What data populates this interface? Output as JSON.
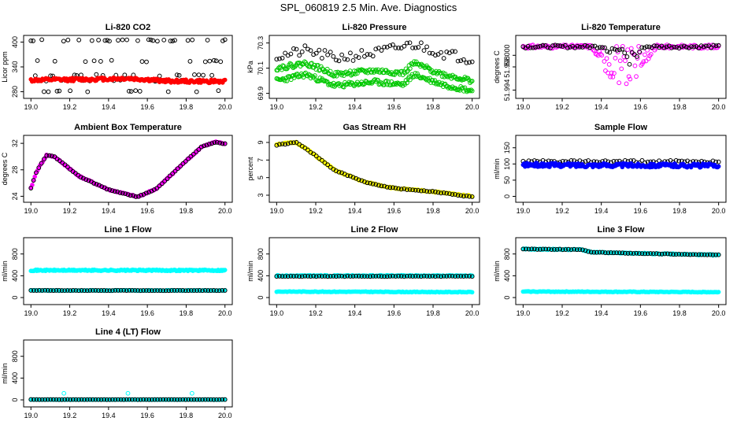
{
  "title": "SPL_060819  2.5 Min. Ave. Diagnostics",
  "colors": {
    "black": "#000000",
    "red": "#ff0000",
    "green": "#00c800",
    "magenta": "#ff00ff",
    "yellow": "#ffff00",
    "blue": "#0000ff",
    "cyan": "#00ffff"
  },
  "chart_data": [
    {
      "id": "co2",
      "type": "scatter",
      "title": "Li-820 CO2",
      "ylabel": "Licor ppm",
      "xlim": [
        19.0,
        20.0
      ],
      "ylim": [
        270,
        410
      ],
      "xticks": [
        "19.0",
        "19.2",
        "19.4",
        "19.6",
        "19.8",
        "20.0"
      ],
      "yticks": [
        {
          "v": 280,
          "l": "280"
        },
        {
          "v": 340,
          "l": "340"
        },
        {
          "v": 400,
          "l": "400"
        }
      ],
      "series": [
        {
          "name": "scatter-high",
          "color": "#000000",
          "style": "open",
          "mode": "pattern",
          "n": 90,
          "seed": 11,
          "base": 320,
          "levels": [
            404,
            354,
            306,
            281,
            320,
            404
          ]
        },
        {
          "name": "red-trace",
          "color": "#ff0000",
          "style": "filled",
          "mode": "band",
          "n": 170,
          "seed": 12,
          "knots": [
            [
              19.0,
              308
            ],
            [
              19.3,
              310
            ],
            [
              19.5,
              312
            ],
            [
              19.7,
              306
            ],
            [
              19.85,
              305
            ],
            [
              20.0,
              305
            ]
          ],
          "noise": 4
        }
      ]
    },
    {
      "id": "pressure",
      "type": "scatter",
      "title": "Li-820 Pressure",
      "ylabel": "kPa",
      "xlim": [
        19.0,
        20.0
      ],
      "ylim": [
        69.88,
        70.34
      ],
      "xticks": [
        "19.0",
        "19.2",
        "19.4",
        "19.6",
        "19.8",
        "20.0"
      ],
      "yticks": [
        {
          "v": 69.9,
          "l": "69.9"
        },
        {
          "v": 70.1,
          "l": "70.1"
        },
        {
          "v": 70.3,
          "l": "70.3"
        }
      ],
      "series": [
        {
          "name": "black-pressure",
          "color": "#000000",
          "style": "open",
          "mode": "band",
          "n": 70,
          "seed": 21,
          "knots": [
            [
              19.0,
              70.19
            ],
            [
              19.15,
              70.24
            ],
            [
              19.3,
              70.18
            ],
            [
              19.5,
              70.22
            ],
            [
              19.7,
              70.29
            ],
            [
              19.85,
              70.22
            ],
            [
              20.0,
              70.17
            ]
          ],
          "noise": 0.04
        },
        {
          "name": "green-upper",
          "color": "#00c800",
          "style": "open",
          "mode": "band",
          "n": 190,
          "seed": 22,
          "knots": [
            [
              19.0,
              70.1
            ],
            [
              19.15,
              70.14
            ],
            [
              19.3,
              70.05
            ],
            [
              19.5,
              70.08
            ],
            [
              19.65,
              70.06
            ],
            [
              19.7,
              70.14
            ],
            [
              19.85,
              70.05
            ],
            [
              20.0,
              70.0
            ]
          ],
          "noise": 0.02
        },
        {
          "name": "green-lower",
          "color": "#00c800",
          "style": "open",
          "mode": "band",
          "n": 190,
          "seed": 23,
          "knots": [
            [
              19.0,
              70.0
            ],
            [
              19.15,
              70.05
            ],
            [
              19.3,
              69.96
            ],
            [
              19.5,
              69.99
            ],
            [
              19.65,
              69.97
            ],
            [
              19.7,
              70.05
            ],
            [
              19.85,
              69.97
            ],
            [
              20.0,
              69.92
            ]
          ],
          "noise": 0.02
        }
      ]
    },
    {
      "id": "licor-temp",
      "type": "scatter",
      "title": "Li-820 Temperature",
      "ylabel": "degrees C",
      "xlim": [
        19.0,
        20.0
      ],
      "ylim": [
        51.993,
        52.003
      ],
      "xticks": [
        "19.0",
        "19.2",
        "19.4",
        "19.6",
        "19.8",
        "20.0"
      ],
      "yticks": [
        {
          "v": 51.994,
          "l": "51.994"
        },
        {
          "v": 51.998,
          "l": "51.998"
        },
        {
          "v": 52.0,
          "l": "52.000"
        }
      ],
      "series": [
        {
          "name": "magenta-temp",
          "color": "#ff00ff",
          "style": "open",
          "mode": "dip",
          "n": 160,
          "seed": 31,
          "base": 52.0015,
          "dipStart": 19.35,
          "dipEnd": 19.68,
          "dipDepth": 0.007,
          "noise": 0.0006
        },
        {
          "name": "black-temp",
          "color": "#000000",
          "style": "open",
          "mode": "dip",
          "n": 80,
          "seed": 32,
          "base": 52.0015,
          "dipStart": 19.4,
          "dipEnd": 19.62,
          "dipDepth": 0.004,
          "noise": 0.0005
        }
      ]
    },
    {
      "id": "box-temp",
      "type": "scatter",
      "title": "Ambient Box Temperature",
      "ylabel": "degrees C",
      "xlim": [
        19.0,
        20.0
      ],
      "ylim": [
        23.5,
        32.8
      ],
      "xticks": [
        "19.0",
        "19.2",
        "19.4",
        "19.6",
        "19.8",
        "20.0"
      ],
      "yticks": [
        {
          "v": 24,
          "l": "24"
        },
        {
          "v": 28,
          "l": "28"
        },
        {
          "v": 32,
          "l": "32"
        }
      ],
      "series": [
        {
          "name": "magenta-box",
          "color": "#ff00ff",
          "style": "filled",
          "mode": "band",
          "n": 150,
          "seed": 41,
          "knots": [
            [
              19.0,
              25.2
            ],
            [
              19.03,
              27.8
            ],
            [
              19.08,
              30.2
            ],
            [
              19.12,
              30.0
            ],
            [
              19.25,
              27.0
            ],
            [
              19.4,
              25.0
            ],
            [
              19.55,
              23.9
            ],
            [
              19.65,
              25.2
            ],
            [
              19.75,
              28.0
            ],
            [
              19.88,
              31.5
            ],
            [
              19.95,
              32.2
            ],
            [
              20.0,
              31.9
            ]
          ],
          "noise": 0.1
        },
        {
          "name": "black-box",
          "color": "#000000",
          "style": "open",
          "mode": "band",
          "n": 75,
          "seed": 42,
          "knots": [
            [
              19.0,
              25.2
            ],
            [
              19.03,
              27.8
            ],
            [
              19.08,
              30.2
            ],
            [
              19.12,
              30.0
            ],
            [
              19.25,
              27.0
            ],
            [
              19.4,
              25.0
            ],
            [
              19.55,
              23.9
            ],
            [
              19.65,
              25.2
            ],
            [
              19.75,
              28.0
            ],
            [
              19.88,
              31.5
            ],
            [
              19.95,
              32.2
            ],
            [
              20.0,
              31.9
            ]
          ],
          "noise": 0.05
        }
      ]
    },
    {
      "id": "rh",
      "type": "scatter",
      "title": "Gas Stream RH",
      "ylabel": "percent",
      "xlim": [
        19.0,
        20.0
      ],
      "ylim": [
        2.5,
        9.5
      ],
      "xticks": [
        "19.0",
        "19.2",
        "19.4",
        "19.6",
        "19.8",
        "20.0"
      ],
      "yticks": [
        {
          "v": 3,
          "l": "3"
        },
        {
          "v": 5,
          "l": "5"
        },
        {
          "v": 7,
          "l": "7"
        },
        {
          "v": 9,
          "l": "9"
        }
      ],
      "series": [
        {
          "name": "yellow-rh",
          "color": "#ffff00",
          "style": "filled",
          "mode": "band",
          "n": 160,
          "seed": 51,
          "knots": [
            [
              19.0,
              8.8
            ],
            [
              19.1,
              9.0
            ],
            [
              19.15,
              8.3
            ],
            [
              19.3,
              5.8
            ],
            [
              19.45,
              4.5
            ],
            [
              19.6,
              3.8
            ],
            [
              19.8,
              3.4
            ],
            [
              20.0,
              2.9
            ]
          ],
          "noise": 0.08
        },
        {
          "name": "black-rh",
          "color": "#000000",
          "style": "open",
          "mode": "band",
          "n": 70,
          "seed": 52,
          "knots": [
            [
              19.0,
              8.7
            ],
            [
              19.1,
              9.0
            ],
            [
              19.15,
              8.3
            ],
            [
              19.3,
              5.8
            ],
            [
              19.45,
              4.5
            ],
            [
              19.6,
              3.8
            ],
            [
              19.8,
              3.4
            ],
            [
              20.0,
              2.8
            ]
          ],
          "noise": 0.05
        }
      ]
    },
    {
      "id": "sample-flow",
      "type": "scatter",
      "title": "Sample Flow",
      "ylabel": "ml/min",
      "xlim": [
        19.0,
        20.0
      ],
      "ylim": [
        -10,
        180
      ],
      "xticks": [
        "19.0",
        "19.2",
        "19.4",
        "19.6",
        "19.8",
        "20.0"
      ],
      "yticks": [
        {
          "v": 0,
          "l": "0"
        },
        {
          "v": 50,
          "l": "50"
        },
        {
          "v": 100,
          "l": "100"
        },
        {
          "v": 150,
          "l": "150"
        }
      ],
      "series": [
        {
          "name": "black-sample",
          "color": "#000000",
          "style": "open",
          "mode": "band",
          "n": 70,
          "seed": 61,
          "knots": [
            [
              19.0,
              107
            ],
            [
              20.0,
              107
            ]
          ],
          "noise": 4
        },
        {
          "name": "blue-sample",
          "color": "#0000ff",
          "style": "filled",
          "mode": "band",
          "n": 200,
          "seed": 62,
          "knots": [
            [
              19.0,
              97
            ],
            [
              20.0,
              95
            ]
          ],
          "noise": 6
        }
      ]
    },
    {
      "id": "line1",
      "type": "scatter",
      "title": "Line 1 Flow",
      "ylabel": "ml/min",
      "xlim": [
        19.0,
        20.0
      ],
      "ylim": [
        -80,
        1050
      ],
      "xticks": [
        "19.0",
        "19.2",
        "19.4",
        "19.6",
        "19.8",
        "20.0"
      ],
      "yticks": [
        {
          "v": 0,
          "l": "0"
        },
        {
          "v": 400,
          "l": "400"
        },
        {
          "v": 800,
          "l": "800"
        }
      ],
      "series": [
        {
          "name": "cyan-line1-high",
          "color": "#00ffff",
          "style": "filled",
          "mode": "band",
          "n": 200,
          "seed": 71,
          "knots": [
            [
              19.0,
              500
            ],
            [
              20.0,
              500
            ]
          ],
          "noise": 12
        },
        {
          "name": "cyan-line1-low",
          "color": "#00ffff",
          "style": "filled",
          "mode": "band",
          "n": 150,
          "seed": 72,
          "knots": [
            [
              19.0,
              130
            ],
            [
              20.0,
              130
            ]
          ],
          "noise": 6
        },
        {
          "name": "black-line1",
          "color": "#000000",
          "style": "open",
          "mode": "band",
          "n": 70,
          "seed": 73,
          "knots": [
            [
              19.0,
              130
            ],
            [
              20.0,
              130
            ]
          ],
          "noise": 3
        }
      ]
    },
    {
      "id": "line2",
      "type": "scatter",
      "title": "Line 2 Flow",
      "ylabel": "ml/min",
      "xlim": [
        19.0,
        20.0
      ],
      "ylim": [
        -80,
        1050
      ],
      "xticks": [
        "19.0",
        "19.2",
        "19.4",
        "19.6",
        "19.8",
        "20.0"
      ],
      "yticks": [
        {
          "v": 0,
          "l": "0"
        },
        {
          "v": 400,
          "l": "400"
        },
        {
          "v": 800,
          "l": "800"
        }
      ],
      "series": [
        {
          "name": "cyan-line2-high",
          "color": "#00ffff",
          "style": "filled",
          "mode": "band",
          "n": 200,
          "seed": 81,
          "knots": [
            [
              19.0,
              400
            ],
            [
              20.0,
              400
            ]
          ],
          "noise": 10
        },
        {
          "name": "black-line2",
          "color": "#000000",
          "style": "open",
          "mode": "band",
          "n": 70,
          "seed": 82,
          "knots": [
            [
              19.0,
              390
            ],
            [
              20.0,
              390
            ]
          ],
          "noise": 4
        },
        {
          "name": "cyan-line2-low",
          "color": "#00ffff",
          "style": "filled",
          "mode": "band",
          "n": 150,
          "seed": 83,
          "knots": [
            [
              19.0,
              110
            ],
            [
              20.0,
              100
            ]
          ],
          "noise": 6
        }
      ]
    },
    {
      "id": "line3",
      "type": "scatter",
      "title": "Line 3 Flow",
      "ylabel": "ml/min",
      "xlim": [
        19.0,
        20.0
      ],
      "ylim": [
        -80,
        1050
      ],
      "xticks": [
        "19.0",
        "19.2",
        "19.4",
        "19.6",
        "19.8",
        "20.0"
      ],
      "yticks": [
        {
          "v": 0,
          "l": "0"
        },
        {
          "v": 400,
          "l": "400"
        },
        {
          "v": 800,
          "l": "800"
        }
      ],
      "series": [
        {
          "name": "cyan-line3-high",
          "color": "#00ffff",
          "style": "filled",
          "mode": "band",
          "n": 170,
          "seed": 91,
          "knots": [
            [
              19.0,
              890
            ],
            [
              19.3,
              880
            ],
            [
              19.35,
              830
            ],
            [
              20.0,
              780
            ]
          ],
          "noise": 10
        },
        {
          "name": "black-line3",
          "color": "#000000",
          "style": "open",
          "mode": "band",
          "n": 70,
          "seed": 92,
          "knots": [
            [
              19.0,
              890
            ],
            [
              19.3,
              880
            ],
            [
              19.35,
              830
            ],
            [
              20.0,
              780
            ]
          ],
          "noise": 5
        },
        {
          "name": "cyan-line3-low",
          "color": "#00ffff",
          "style": "filled",
          "mode": "band",
          "n": 150,
          "seed": 93,
          "knots": [
            [
              19.0,
              110
            ],
            [
              20.0,
              100
            ]
          ],
          "noise": 6
        }
      ]
    },
    {
      "id": "line4",
      "type": "scatter",
      "title": "Line 4 (LT) Flow",
      "ylabel": "ml/min",
      "xlim": [
        19.0,
        20.0
      ],
      "ylim": [
        -80,
        1050
      ],
      "xticks": [
        "19.0",
        "19.2",
        "19.4",
        "19.6",
        "19.8",
        "20.0"
      ],
      "yticks": [
        {
          "v": 0,
          "l": "0"
        },
        {
          "v": 400,
          "l": "400"
        },
        {
          "v": 800,
          "l": "800"
        }
      ],
      "series": [
        {
          "name": "cyan-line4",
          "color": "#00ffff",
          "style": "filled",
          "mode": "band",
          "n": 170,
          "seed": 101,
          "knots": [
            [
              19.0,
              5
            ],
            [
              20.0,
              5
            ]
          ],
          "noise": 3
        },
        {
          "name": "black-line4",
          "color": "#000000",
          "style": "open",
          "mode": "band",
          "n": 70,
          "seed": 102,
          "knots": [
            [
              19.0,
              5
            ],
            [
              20.0,
              5
            ]
          ],
          "noise": 2
        },
        {
          "name": "cyan-line4-spikes",
          "color": "#00ffff",
          "style": "open",
          "mode": "points",
          "points": [
            [
              19.17,
              120
            ],
            [
              19.5,
              120
            ],
            [
              19.83,
              120
            ]
          ]
        }
      ]
    }
  ]
}
